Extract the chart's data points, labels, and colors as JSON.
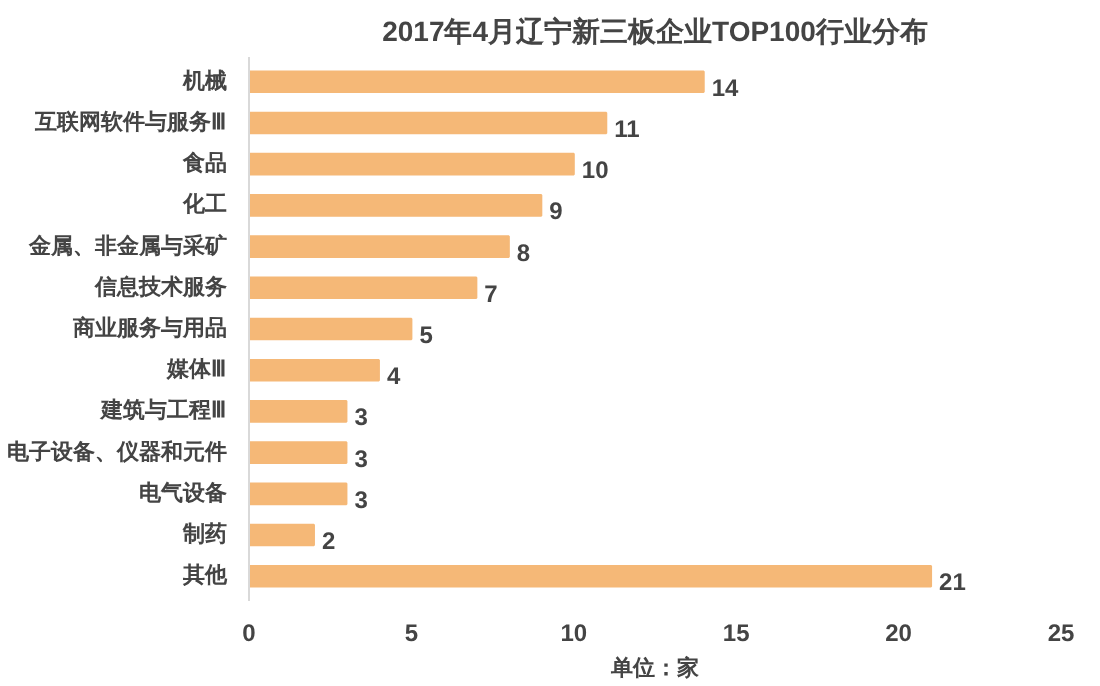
{
  "chart_data": {
    "type": "bar",
    "orientation": "horizontal",
    "title": "2017年4月辽宁新三板企业TOP100行业分布",
    "xlabel": "单位：家",
    "categories": [
      "机械",
      "互联网软件与服务Ⅲ",
      "食品",
      "化工",
      "金属、非金属与采矿",
      "信息技术服务",
      "商业服务与用品",
      "媒体Ⅲ",
      "建筑与工程Ⅲ",
      "电子设备、仪器和元件",
      "电气设备",
      "制药",
      "其他"
    ],
    "values": [
      14,
      11,
      10,
      9,
      8,
      7,
      5,
      4,
      3,
      3,
      3,
      2,
      21
    ],
    "color": "#f5b877",
    "xlim": [
      0,
      25
    ],
    "xticks": [
      0,
      5,
      10,
      15,
      20,
      25
    ],
    "grid": false,
    "data_labels": true
  }
}
